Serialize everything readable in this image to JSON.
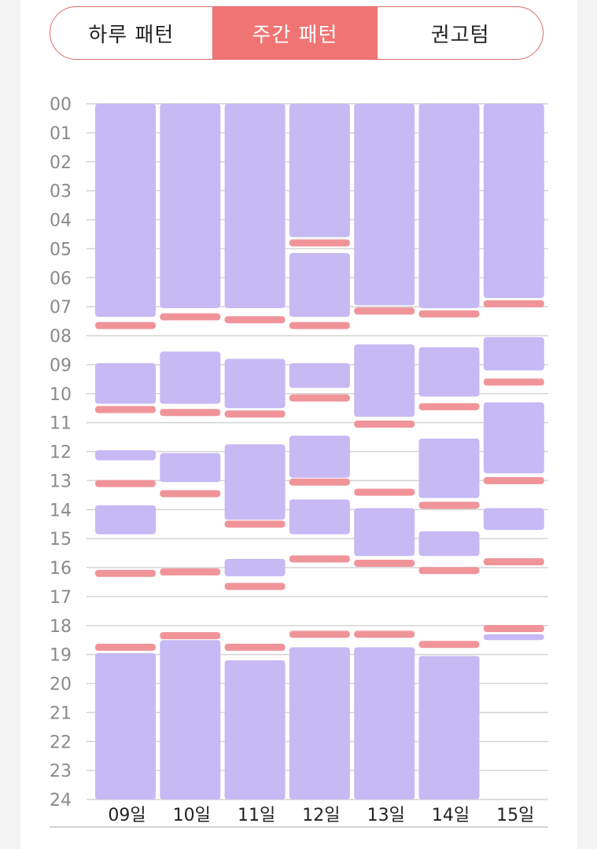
{
  "tabs": [
    {
      "label": "하루 패턴",
      "active": false
    },
    {
      "label": "주간 패턴",
      "active": true
    },
    {
      "label": "권고텀",
      "active": false
    }
  ],
  "colors": {
    "sleep": "#c6b9f4",
    "marker": "#f0949a",
    "accent": "#f07474",
    "grid": "#d4d4d4"
  },
  "chart_data": {
    "type": "bar",
    "orientation": "vertical",
    "categories": [
      "09일",
      "10일",
      "11일",
      "12일",
      "13일",
      "14일",
      "15일"
    ],
    "y_tick_labels": [
      "00",
      "01",
      "02",
      "03",
      "04",
      "05",
      "06",
      "07",
      "08",
      "09",
      "10",
      "11",
      "12",
      "13",
      "14",
      "15",
      "16",
      "17",
      "18",
      "19",
      "20",
      "21",
      "22",
      "23",
      "24"
    ],
    "ylim": [
      0,
      24
    ],
    "y_inverted": true,
    "grid": true,
    "series": [
      {
        "values": [
          [
            [
              0,
              7.35
            ],
            [
              8.95,
              10.35
            ],
            [
              11.95,
              12.3
            ],
            [
              13.85,
              14.85
            ],
            [
              18.95,
              24
            ]
          ],
          [
            [
              0,
              7.05
            ],
            [
              8.55,
              10.35
            ],
            [
              12.05,
              13.05
            ],
            [
              18.5,
              24
            ]
          ],
          [
            [
              0,
              7.05
            ],
            [
              8.8,
              10.5
            ],
            [
              11.75,
              14.35
            ],
            [
              15.7,
              16.3
            ],
            [
              19.2,
              24
            ]
          ],
          [
            [
              0,
              4.6
            ],
            [
              5.15,
              7.35
            ],
            [
              8.95,
              9.8
            ],
            [
              11.45,
              12.9
            ],
            [
              13.65,
              14.85
            ],
            [
              18.75,
              24
            ]
          ],
          [
            [
              0,
              6.95
            ],
            [
              8.3,
              10.8
            ],
            [
              13.95,
              15.6
            ],
            [
              18.75,
              24
            ]
          ],
          [
            [
              0,
              7.05
            ],
            [
              8.4,
              10.1
            ],
            [
              11.55,
              13.6
            ],
            [
              14.75,
              15.6
            ],
            [
              19.05,
              24
            ]
          ],
          [
            [
              0,
              6.7
            ],
            [
              8.05,
              9.2
            ],
            [
              10.3,
              12.75
            ],
            [
              13.95,
              14.7
            ],
            [
              18.3,
              18.5
            ]
          ]
        ]
      },
      {
        "values": [
          [
            7.65,
            10.55,
            13.1,
            16.2,
            18.75
          ],
          [
            7.35,
            10.65,
            13.45,
            16.15,
            18.35
          ],
          [
            7.45,
            10.7,
            14.5,
            16.65,
            18.75
          ],
          [
            7.65,
            4.8,
            10.15,
            13.05,
            15.7,
            18.3
          ],
          [
            7.15,
            11.05,
            13.4,
            15.85,
            18.3
          ],
          [
            7.25,
            10.45,
            13.85,
            16.1,
            18.65
          ],
          [
            6.9,
            9.6,
            13.0,
            15.8,
            18.1
          ]
        ]
      }
    ]
  }
}
